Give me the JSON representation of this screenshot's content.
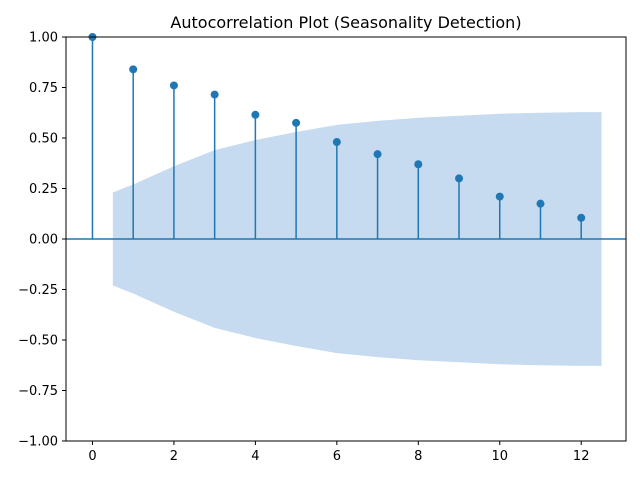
{
  "chart_data": {
    "type": "stem",
    "title": "Autocorrelation Plot (Seasonality Detection)",
    "xlabel": "",
    "ylabel": "",
    "xlim": [
      -0.65,
      13.1
    ],
    "ylim": [
      -1.0,
      1.0
    ],
    "x_ticks": [
      0,
      2,
      4,
      6,
      8,
      10,
      12
    ],
    "y_ticks": [
      -1.0,
      -0.75,
      -0.5,
      -0.25,
      0.0,
      0.25,
      0.5,
      0.75,
      1.0
    ],
    "y_tick_labels": [
      "−1.00",
      "−0.75",
      "−0.50",
      "−0.25",
      "0.00",
      "0.25",
      "0.50",
      "0.75",
      "1.00"
    ],
    "x_tick_labels": [
      "0",
      "2",
      "4",
      "6",
      "8",
      "10",
      "12"
    ],
    "series": [
      {
        "x": [
          0,
          1,
          2,
          3,
          4,
          5,
          6,
          7,
          8,
          9,
          10,
          11,
          12
        ],
        "values": [
          1.0,
          0.84,
          0.76,
          0.715,
          0.615,
          0.575,
          0.48,
          0.42,
          0.37,
          0.3,
          0.21,
          0.175,
          0.105
        ]
      }
    ],
    "confidence_band": {
      "x": [
        0.5,
        1,
        2,
        3,
        4,
        5,
        6,
        7,
        8,
        9,
        10,
        11,
        12,
        12.5
      ],
      "upper": [
        0.23,
        0.27,
        0.36,
        0.44,
        0.49,
        0.53,
        0.565,
        0.585,
        0.6,
        0.61,
        0.62,
        0.625,
        0.628,
        0.628
      ],
      "lower": [
        -0.23,
        -0.27,
        -0.36,
        -0.44,
        -0.49,
        -0.53,
        -0.565,
        -0.585,
        -0.6,
        -0.61,
        -0.62,
        -0.625,
        -0.628,
        -0.628
      ]
    },
    "colors": {
      "stem": "#1f77b4",
      "band": "#c6dbef",
      "axes": "#000000"
    },
    "grid": false
  }
}
